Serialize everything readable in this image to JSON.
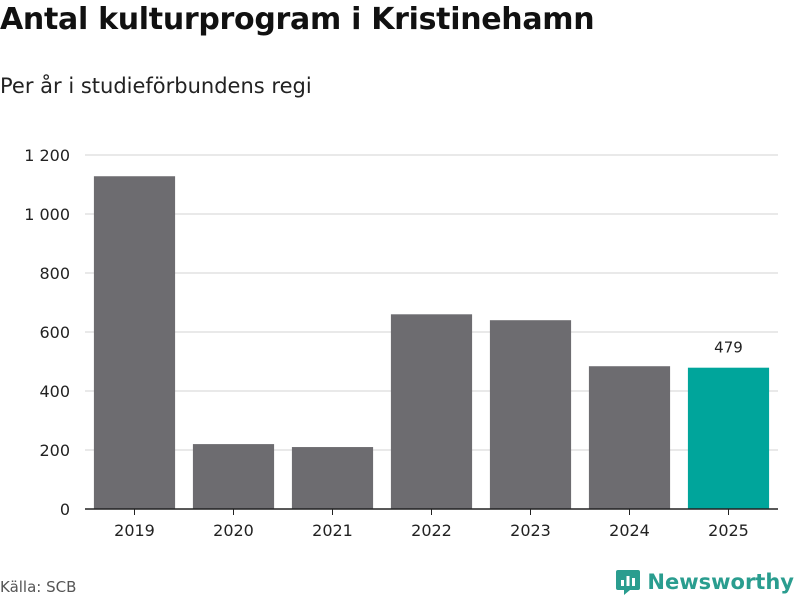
{
  "title": "Antal kulturprogram i Kristinehamn",
  "subtitle": "Per år i studieförbundens regi",
  "source": "Källa: SCB",
  "brand": {
    "name": "Newsworthy",
    "icon": "newsworthy-logo-icon",
    "color": "#2a9d8f"
  },
  "chart_data": {
    "type": "bar",
    "title": "Antal kulturprogram i Kristinehamn",
    "subtitle": "Per år i studieförbundens regi",
    "categories": [
      "2019",
      "2020",
      "2021",
      "2022",
      "2023",
      "2024",
      "2025"
    ],
    "values": [
      1128,
      220,
      210,
      660,
      640,
      484,
      479
    ],
    "ylim": [
      0,
      1200
    ],
    "yticks": [
      0,
      200,
      400,
      600,
      800,
      1000,
      1200
    ],
    "ytick_labels": [
      "0",
      "200",
      "400",
      "600",
      "800",
      "1 000",
      "1 200"
    ],
    "grid": true,
    "bar_color": "#6d6c70",
    "highlight_color": "#00a59b",
    "highlight_index": 6,
    "data_labels": [
      {
        "index": 6,
        "text": "479"
      }
    ]
  }
}
